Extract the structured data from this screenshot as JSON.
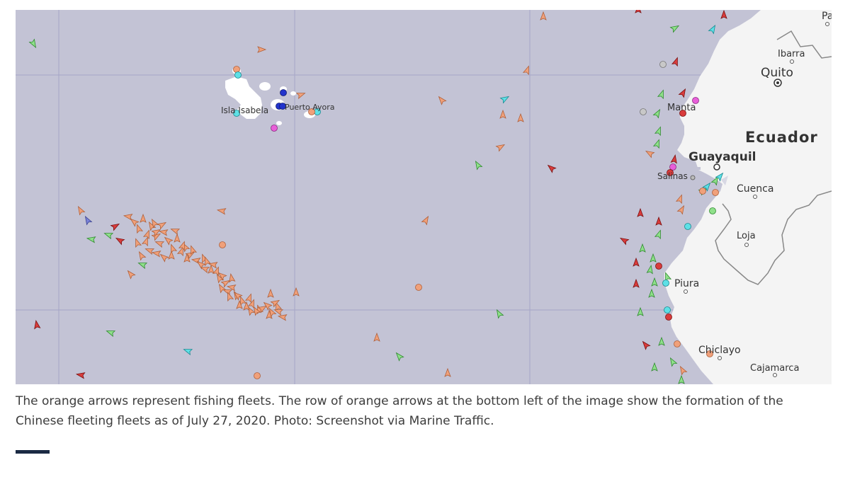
{
  "map": {
    "places": {
      "pasto": "Pas",
      "ibarra": "Ibarra",
      "quito": "Quito",
      "ecuador": "Ecuador",
      "manta": "Manta",
      "guayaquil": "Guayaquil",
      "salinas": "Salinas",
      "cuenca": "Cuenca",
      "loja": "Loja",
      "piura": "Piura",
      "chiclayo": "Chiclayo",
      "cajamarca": "Cajamarca",
      "isla_isabela": "Isla Isabela",
      "puerto_ayora": "Puerto Ayora"
    },
    "colors": {
      "ocean": "#c3c3d5",
      "land": "#f4f4f4",
      "fishing_vessel": "#f0a07a",
      "cargo_vessel": "#8fe08a",
      "tanker": "#d93c3c",
      "passenger": "#5ee0e6",
      "high_speed": "#e85fd9",
      "navigation_aid": "#2233cc"
    }
  },
  "caption": {
    "text": "The orange arrows represent fishing fleets. The row of orange arrows at the bottom left of the image show the formation of the Chinese fleeting fleets as of July 27, 2020. Photo: Screenshot via Marine Traffic."
  }
}
